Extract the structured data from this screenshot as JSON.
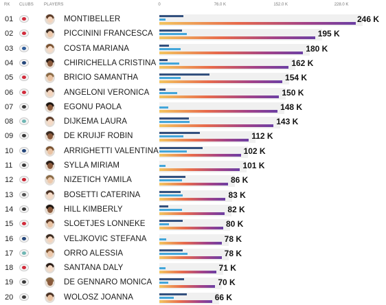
{
  "header": {
    "rank": "RK",
    "clubs": "CLUBS",
    "players": "PLAYERS"
  },
  "colors": {
    "bar_series_1": "#33507e",
    "bar_series_2": "#43a6da",
    "bar_series_3_gradient": [
      "#f3c55f",
      "#e76a4c",
      "#a24289",
      "#6c3fa3"
    ],
    "track": "#f0f0f0"
  },
  "chart_data": {
    "type": "bar",
    "orientation": "horizontal",
    "x_ticks": [
      "0",
      "76.0 K",
      "152.0 K",
      "228.0 K"
    ],
    "x_tick_values": [
      0,
      76,
      152,
      228
    ],
    "xlim": [
      0,
      260
    ],
    "rows": [
      {
        "rank": "01",
        "player": "MONTIBELLER",
        "value": 246,
        "label": "246 K",
        "sub1": 30,
        "sub2": 8,
        "club_icon": "club-red-white-icon"
      },
      {
        "rank": "02",
        "player": "PICCININI FRANCESCA",
        "value": 195,
        "label": "195 K",
        "sub1": 28,
        "sub2": 34,
        "club_icon": "club-red-white-icon"
      },
      {
        "rank": "03",
        "player": "COSTA MARIANA",
        "value": 180,
        "label": "180 K",
        "sub1": 12,
        "sub2": 27,
        "club_icon": "club-blue-wave-icon"
      },
      {
        "rank": "04",
        "player": "CHIRICHELLA CRISTINA",
        "value": 162,
        "label": "162 K",
        "sub1": 10,
        "sub2": 25,
        "club_icon": "club-blue-oval-icon"
      },
      {
        "rank": "05",
        "player": "BRICIO SAMANTHA",
        "value": 154,
        "label": "154 K",
        "sub1": 63,
        "sub2": 27,
        "club_icon": "club-red-white-icon"
      },
      {
        "rank": "06",
        "player": "ANGELONI VERONICA",
        "value": 150,
        "label": "150 K",
        "sub1": 8,
        "sub2": 22,
        "club_icon": "club-red-white-icon"
      },
      {
        "rank": "07",
        "player": "EGONU PAOLA",
        "value": 148,
        "label": "148 K",
        "sub1": 0,
        "sub2": 11,
        "club_icon": "club-imoco-icon"
      },
      {
        "rank": "08",
        "player": "DIJKEMA LAURA",
        "value": 143,
        "label": "143 K",
        "sub1": 37,
        "sub2": 38,
        "club_icon": "club-teal-leaf-icon"
      },
      {
        "rank": "09",
        "player": "DE KRUIJF ROBIN",
        "value": 112,
        "label": "112 K",
        "sub1": 51,
        "sub2": 30,
        "club_icon": "club-imoco-icon"
      },
      {
        "rank": "10",
        "player": "ARRIGHETTI VALENTINA",
        "value": 102,
        "label": "102 K",
        "sub1": 54,
        "sub2": 34,
        "club_icon": "club-blue-oval-icon"
      },
      {
        "rank": "11",
        "player": "SYLLA MIRIAM",
        "value": 101,
        "label": "101 K",
        "sub1": 0,
        "sub2": 8,
        "club_icon": "club-imoco-icon"
      },
      {
        "rank": "12",
        "player": "NIZETICH YAMILA",
        "value": 86,
        "label": "86 K",
        "sub1": 33,
        "sub2": 28,
        "club_icon": "club-red-shield-icon"
      },
      {
        "rank": "13",
        "player": "BOSETTI CATERINA",
        "value": 83,
        "label": "83 K",
        "sub1": 27,
        "sub2": 29,
        "club_icon": "club-dark-crest-icon"
      },
      {
        "rank": "14",
        "player": "HILL KIMBERLY",
        "value": 82,
        "label": "82 K",
        "sub1": 11,
        "sub2": 28,
        "club_icon": "club-imoco-icon"
      },
      {
        "rank": "15",
        "player": "SLOETJES LONNEKE",
        "value": 80,
        "label": "80 K",
        "sub1": 29,
        "sub2": 12,
        "club_icon": "club-red-white-icon"
      },
      {
        "rank": "16",
        "player": "VELJKOVIC STEFANA",
        "value": 78,
        "label": "78 K",
        "sub1": 0,
        "sub2": 9,
        "club_icon": "club-blue-oval-icon"
      },
      {
        "rank": "17",
        "player": "ORRO ALESSIA",
        "value": 78,
        "label": "78 K",
        "sub1": 29,
        "sub2": 35,
        "club_icon": "club-teal-leaf-icon"
      },
      {
        "rank": "18",
        "player": "SANTANA DALY",
        "value": 71,
        "label": "71 K",
        "sub1": 0,
        "sub2": 8,
        "club_icon": "club-red-white-icon"
      },
      {
        "rank": "19",
        "player": "DE GENNARO MONICA",
        "value": 70,
        "label": "70 K",
        "sub1": 31,
        "sub2": 11,
        "club_icon": "club-imoco-icon"
      },
      {
        "rank": "20",
        "player": "WOLOSZ JOANNA",
        "value": 66,
        "label": "66 K",
        "sub1": 34,
        "sub2": 18,
        "club_icon": "club-imoco-icon"
      }
    ]
  }
}
